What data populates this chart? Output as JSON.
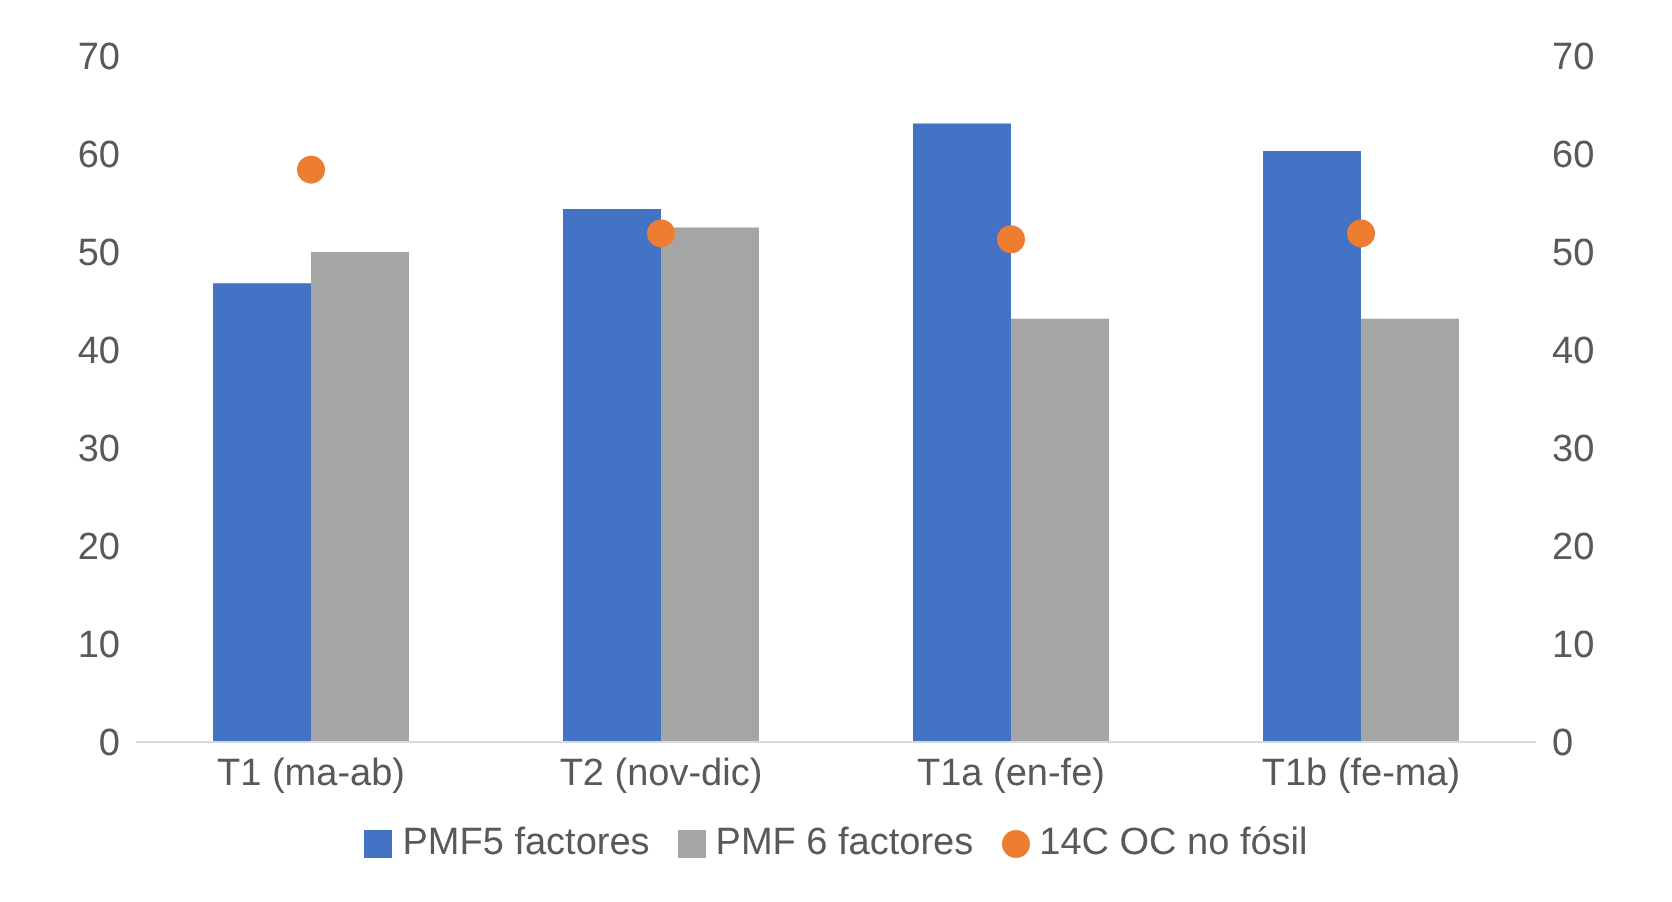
{
  "chart_data": {
    "type": "bar",
    "categories": [
      "T1 (ma-ab)",
      "T2 (nov-dic)",
      "T1a (en-fe)",
      "T1b (fe-ma)"
    ],
    "series": [
      {
        "name": "PMF5 factores",
        "color": "#4472c4",
        "values": [
          46.8,
          54.4,
          63.1,
          60.3
        ]
      },
      {
        "name": "PMF 6 factores",
        "color": "#a5a5a5",
        "values": [
          50,
          52.5,
          43.2,
          43.2
        ]
      },
      {
        "name": "14C OC no fósil",
        "type": "scatter",
        "color": "#ed7d31",
        "marker": "circle",
        "values": [
          58.4,
          51.9,
          51.3,
          51.9
        ]
      }
    ],
    "ylim": [
      0,
      70
    ],
    "yticks": [
      0,
      10,
      20,
      30,
      40,
      50,
      60,
      70
    ],
    "y2lim": [
      0,
      70
    ],
    "y2ticks": [
      0,
      10,
      20,
      30,
      40,
      50,
      60,
      70
    ],
    "legend": "bottom"
  }
}
